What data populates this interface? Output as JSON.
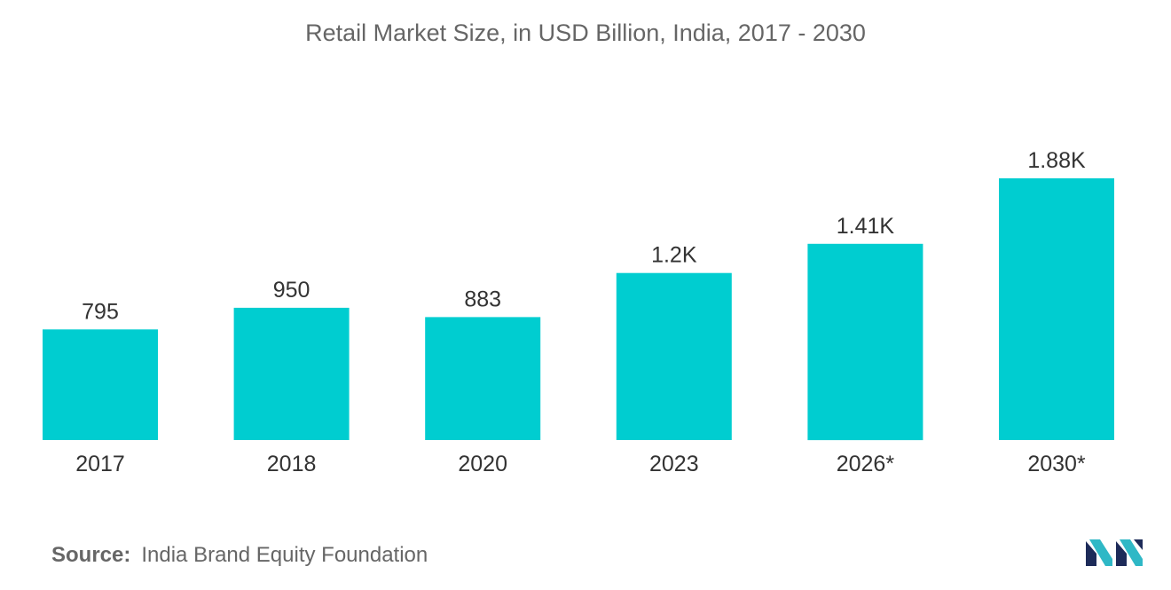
{
  "title": "Retail Market Size, in USD Billion, India, 2017 - 2030",
  "source": {
    "label": "Source:",
    "text": "India Brand Equity Foundation"
  },
  "logo": {
    "icon": "mordor-intelligence-logo-icon",
    "colors": [
      "#1d2b59",
      "#2fb8c6"
    ]
  },
  "colors": {
    "bar": "#00cdd0",
    "text": "#333333",
    "title": "#666666"
  },
  "chart_data": {
    "type": "bar",
    "title": "Retail Market Size, in USD Billion, India, 2017 - 2030",
    "xlabel": "",
    "ylabel": "",
    "categories": [
      "2017",
      "2018",
      "2020",
      "2023",
      "2026*",
      "2030*"
    ],
    "values": [
      795,
      950,
      883,
      1200,
      1410,
      1880
    ],
    "data_labels": [
      "795",
      "950",
      "883",
      "1.2K",
      "1.41K",
      "1.88K"
    ],
    "ylim": [
      0,
      2000
    ],
    "grid": false,
    "legend": "none"
  }
}
